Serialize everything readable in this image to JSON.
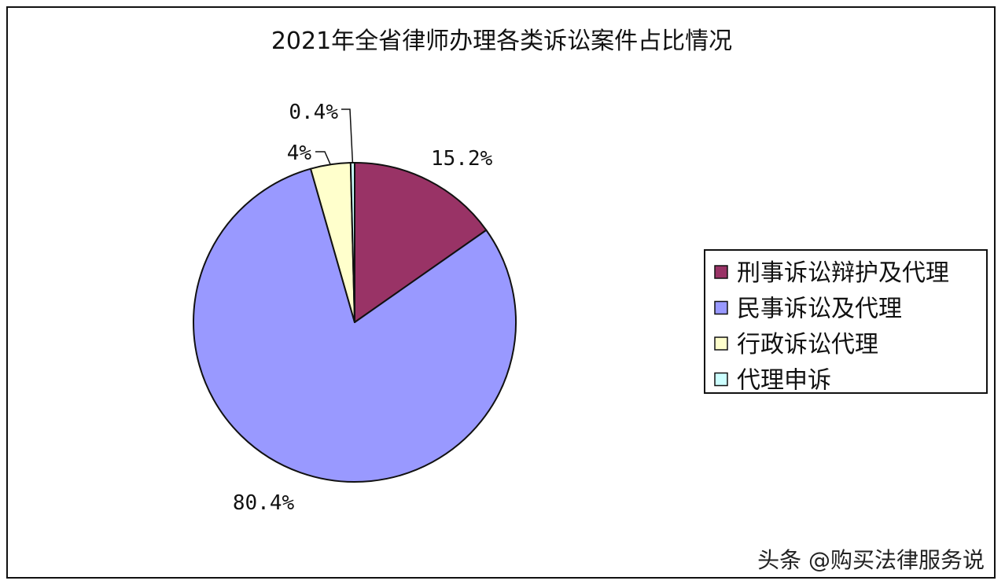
{
  "chart_data": {
    "type": "pie",
    "title": "2021年全省律师办理各类诉讼案件占比情况",
    "slices": [
      {
        "name": "刑事诉讼辩护及代理",
        "value": 15.2,
        "label": "15.2%",
        "color": "#993366"
      },
      {
        "name": "民事诉讼及代理",
        "value": 80.4,
        "label": "80.4%",
        "color": "#9999ff"
      },
      {
        "name": "行政诉讼代理",
        "value": 4.0,
        "label": "4%",
        "color": "#ffffcc"
      },
      {
        "name": "代理申诉",
        "value": 0.4,
        "label": "0.4%",
        "color": "#ccffff"
      }
    ],
    "start": "12 o'clock",
    "direction": "clockwise",
    "legend_position": "right"
  },
  "watermark": "头条 @购买法律服务说"
}
